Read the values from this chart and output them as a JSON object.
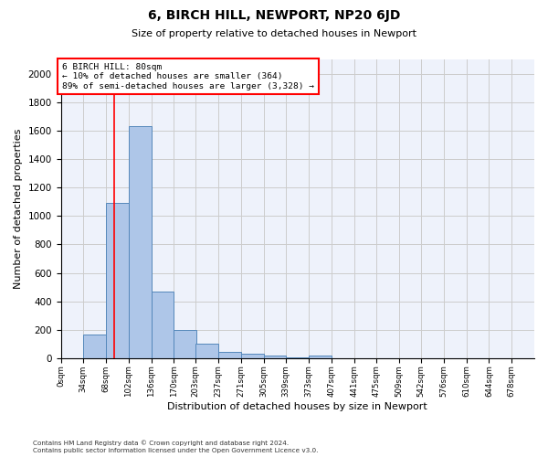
{
  "title": "6, BIRCH HILL, NEWPORT, NP20 6JD",
  "subtitle": "Size of property relative to detached houses in Newport",
  "xlabel": "Distribution of detached houses by size in Newport",
  "ylabel": "Number of detached properties",
  "footnote1": "Contains HM Land Registry data © Crown copyright and database right 2024.",
  "footnote2": "Contains public sector information licensed under the Open Government Licence v3.0.",
  "annotation_line1": "6 BIRCH HILL: 80sqm",
  "annotation_line2": "← 10% of detached houses are smaller (364)",
  "annotation_line3": "89% of semi-detached houses are larger (3,328) →",
  "bar_color": "#aec6e8",
  "bar_edge_color": "#5588bb",
  "vline_x": 80,
  "vline_color": "red",
  "categories": [
    "0sqm",
    "34sqm",
    "68sqm",
    "102sqm",
    "136sqm",
    "170sqm",
    "203sqm",
    "237sqm",
    "271sqm",
    "305sqm",
    "339sqm",
    "373sqm",
    "407sqm",
    "441sqm",
    "475sqm",
    "509sqm",
    "542sqm",
    "576sqm",
    "610sqm",
    "644sqm",
    "678sqm"
  ],
  "bin_edges": [
    0,
    34,
    68,
    102,
    136,
    170,
    203,
    237,
    271,
    305,
    339,
    373,
    407,
    441,
    475,
    509,
    542,
    576,
    610,
    644,
    678
  ],
  "bar_heights": [
    0,
    165,
    1090,
    1630,
    470,
    200,
    100,
    45,
    30,
    20,
    5,
    20,
    0,
    0,
    0,
    0,
    0,
    0,
    0,
    0
  ],
  "ylim": [
    0,
    2100
  ],
  "yticks": [
    0,
    200,
    400,
    600,
    800,
    1000,
    1200,
    1400,
    1600,
    1800,
    2000
  ],
  "grid_color": "#cccccc",
  "bg_color": "#eef2fb"
}
